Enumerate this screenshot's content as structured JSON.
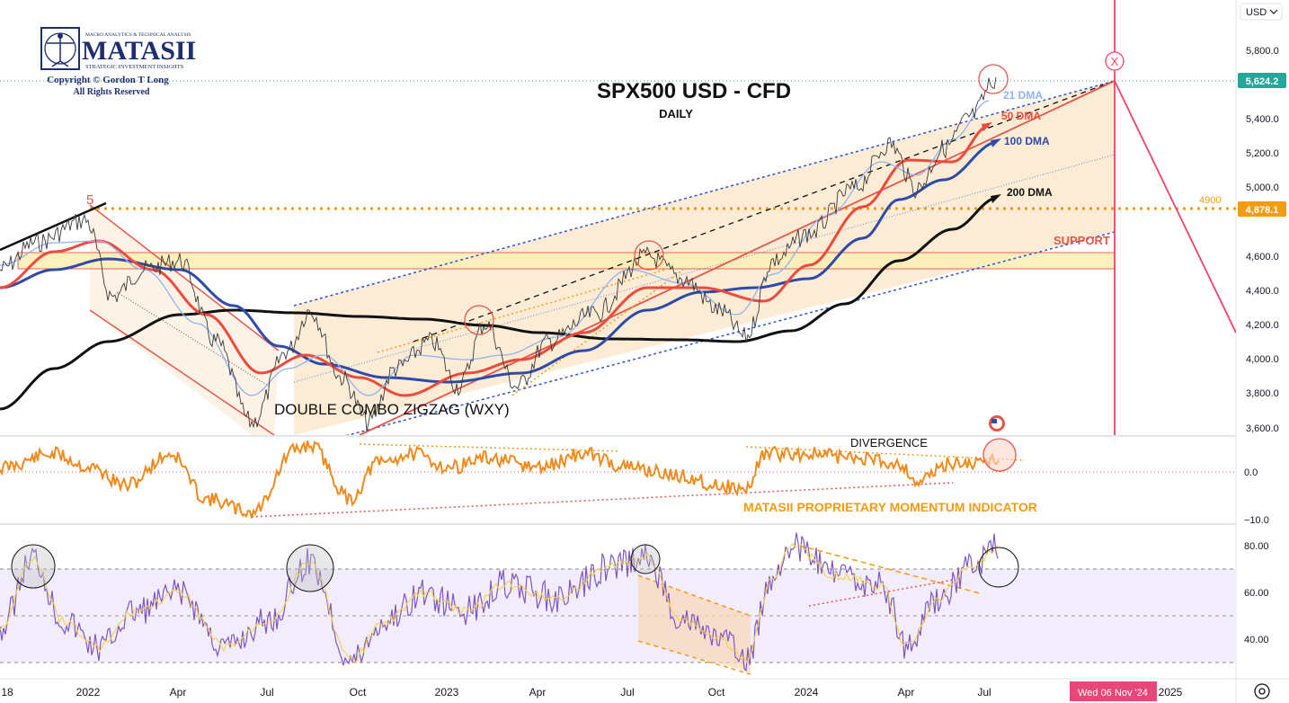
{
  "logo": {
    "tagline": "MACRO ANALYTICS & TECHNICAL ANALYSIS",
    "name": "MATASII",
    "subtitle": "STRATEGIC INVESTMENT INSIGHTS",
    "copyright": "Copyright © Gordon T Long",
    "rights": "All Rights Reserved"
  },
  "currency_label": "USD",
  "chart_data": [
    {
      "type": "line",
      "title": "SPX500 USD - CFD",
      "subtitle": "DAILY",
      "x_ticks": [
        "18",
        "2022",
        "Apr",
        "Jul",
        "Oct",
        "2023",
        "Apr",
        "Jul",
        "Oct",
        "2024",
        "Apr",
        "Jul",
        "2025"
      ],
      "x_range": [
        "2021-09",
        "2025-02"
      ],
      "y_ticks": [
        "5,800.0",
        "5,600.0",
        "5,400.0",
        "5,200.0",
        "5,000.0",
        "4,800.0",
        "4,600.0",
        "4,400.0",
        "4,200.0",
        "4,000.0",
        "3,800.0",
        "3,600.0"
      ],
      "ylim": [
        3560,
        5900
      ],
      "last_price": "5,624.2",
      "level_label": "4,878.1",
      "level_4900_label": "4900",
      "date_marker": "Wed 06 Nov '24",
      "support_label": "SUPPORT",
      "wave_label": "5",
      "pattern_label": "DOUBLE COMBO ZIGZAG (WXY)",
      "circle_marker": "X",
      "series": [
        {
          "name": "21 DMA",
          "color": "#90b4f0"
        },
        {
          "name": "50 DMA",
          "color": "#f04a3c"
        },
        {
          "name": "100 DMA",
          "color": "#2f4aa8"
        },
        {
          "name": "200 DMA",
          "color": "#111111"
        }
      ]
    },
    {
      "type": "line",
      "title": "MATASII PROPRIETARY MOMENTUM INDICATOR",
      "annotation": "DIVERGENCE",
      "y_ticks": [
        "0.0",
        "−10.0"
      ]
    },
    {
      "type": "line",
      "title": "",
      "y_ticks": [
        "80.00",
        "60.00",
        "40.00"
      ],
      "ylim": [
        25,
        90
      ],
      "bands": [
        30,
        50,
        70
      ]
    }
  ]
}
